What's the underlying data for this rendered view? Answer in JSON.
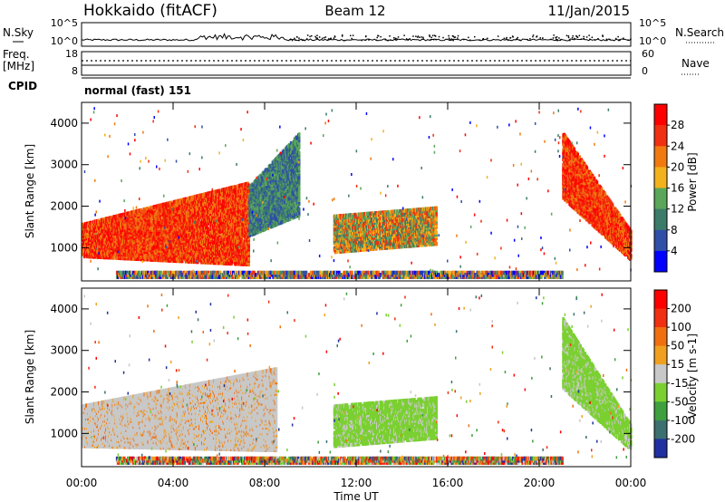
{
  "header": {
    "radar": "Hokkaido (fitACF)",
    "beam": "Beam 12",
    "date": "11/Jan/2015"
  },
  "noise_panel": {
    "left_label": "N.Sky",
    "left_ticks": [
      "10^5",
      "10^0"
    ],
    "right_ticks": [
      "10^5",
      "10^0"
    ],
    "right_label": "N.Search"
  },
  "freq_panel": {
    "label_line1": "Freq.",
    "label_line2": "[MHz]",
    "left_ticks": [
      "18",
      "8"
    ],
    "right_ticks": [
      "60",
      "0"
    ],
    "right_label": "Nave"
  },
  "cpid": {
    "label": "CPID",
    "value": "normal (fast) 151"
  },
  "x_axis": {
    "title": "Time UT",
    "ticks": [
      "00:00",
      "04:00",
      "08:00",
      "12:00",
      "16:00",
      "20:00",
      "00:00"
    ]
  },
  "colors": {
    "velocity_background": "#c8c8c8"
  },
  "chart_data": [
    {
      "type": "heatmap",
      "panel": "power",
      "ylabel": "Slant Range [km]",
      "yticks": [
        "1000",
        "2000",
        "3000",
        "4000"
      ],
      "ylim": [
        200,
        4500
      ],
      "xlim": [
        0,
        24
      ],
      "colorbar": {
        "label": "Power [dB]",
        "ticks": [
          "4",
          "8",
          "12",
          "16",
          "20",
          "24",
          "28"
        ],
        "colors": [
          "#0000ff",
          "#2f4fa8",
          "#3b7b6a",
          "#5aa65a",
          "#f2b21c",
          "#f07a10",
          "#f03010",
          "#ff0000"
        ]
      },
      "regions": [
        {
          "t": [
            0.0,
            7.3
          ],
          "r0": [
            800,
            600
          ],
          "r1": [
            1600,
            2600
          ],
          "level": "high"
        },
        {
          "t": [
            7.3,
            9.5
          ],
          "r0": [
            1300,
            1800
          ],
          "r1": [
            2500,
            3800
          ],
          "level": "low"
        },
        {
          "t": [
            11.0,
            15.5
          ],
          "r0": [
            900,
            1100
          ],
          "r1": [
            1800,
            2000
          ],
          "level": "mid"
        },
        {
          "t": [
            21.0,
            24.0
          ],
          "r0": [
            2200,
            700
          ],
          "r1": [
            3800,
            1400
          ],
          "level": "high"
        },
        {
          "t": [
            1.5,
            21.0
          ],
          "r0": [
            300,
            300
          ],
          "r1": [
            450,
            450
          ],
          "level": "ground"
        }
      ]
    },
    {
      "type": "heatmap",
      "panel": "velocity",
      "ylabel": "Slant Range [km]",
      "yticks": [
        "1000",
        "2000",
        "3000",
        "4000"
      ],
      "ylim": [
        200,
        4500
      ],
      "xlim": [
        0,
        24
      ],
      "colorbar": {
        "label": "Velocity [m s-1]",
        "ticks": [
          "200",
          "100",
          "50",
          "15",
          "-15",
          "-50",
          "-100",
          "-200"
        ],
        "colors": [
          "#2030a0",
          "#3b6f70",
          "#3ea03e",
          "#7ad030",
          "#c8c8c8",
          "#f0a020",
          "#f07010",
          "#f03010",
          "#ff0000"
        ]
      },
      "regions": [
        {
          "t": [
            0.0,
            8.5
          ],
          "r0": [
            700,
            600
          ],
          "r1": [
            1700,
            2600
          ],
          "level": "grey"
        },
        {
          "t": [
            11.0,
            15.5
          ],
          "r0": [
            700,
            900
          ],
          "r1": [
            1700,
            1900
          ],
          "level": "green"
        },
        {
          "t": [
            21.0,
            24.0
          ],
          "r0": [
            2100,
            600
          ],
          "r1": [
            3800,
            1200
          ],
          "level": "green"
        },
        {
          "t": [
            1.5,
            21.0
          ],
          "r0": [
            300,
            300
          ],
          "r1": [
            450,
            450
          ],
          "level": "ground"
        }
      ]
    }
  ]
}
